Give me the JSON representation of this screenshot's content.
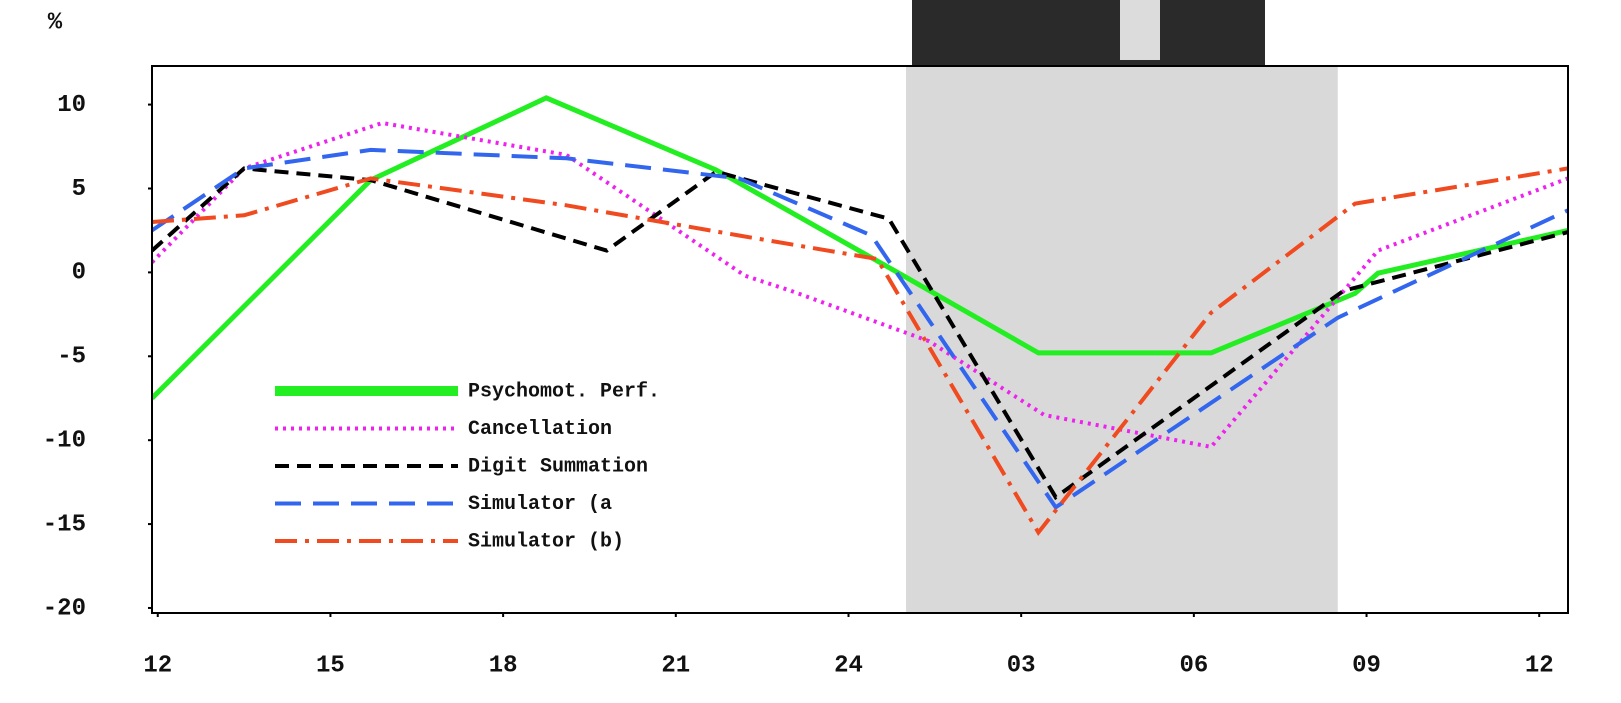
{
  "chart_data": {
    "type": "line",
    "y_unit": "%",
    "xlim": [
      11.9,
      36.5
    ],
    "ylim": [
      -20.3,
      12.3
    ],
    "xticks": [
      12,
      15,
      18,
      21,
      24,
      {
        "value": 27,
        "label": "03"
      },
      {
        "value": 30,
        "label": "06"
      },
      {
        "value": 33,
        "label": "09"
      },
      {
        "value": 36,
        "label": "12"
      }
    ],
    "yticks": [
      10,
      5,
      0,
      -5,
      -10,
      -15,
      -20
    ],
    "shaded_region": [
      25,
      32.5
    ],
    "series": [
      {
        "name": "Psychomot. Perf.",
        "color": "#22ee22",
        "dash": "solid",
        "x": [
          11.9,
          15.7,
          18.75,
          21.7,
          24.8,
          27.3,
          30.3,
          32.8,
          33.2,
          36.5
        ],
        "values": [
          -7.5,
          5.5,
          10.4,
          6.1,
          0.1,
          -4.8,
          -4.8,
          -1.25,
          -0.05,
          2.5
        ]
      },
      {
        "name": "Cancellation",
        "color": "#ee22ee",
        "dash": "dotted",
        "x": [
          11.9,
          13.5,
          15.9,
          19.1,
          22.2,
          23.0,
          25.4,
          27.4,
          30.3,
          33.2,
          36.5
        ],
        "values": [
          0.6,
          6.2,
          8.9,
          7.0,
          -0.2,
          -1.1,
          -4.1,
          -8.5,
          -10.4,
          1.3,
          5.6
        ]
      },
      {
        "name": "Digit Summation",
        "color": "#000000",
        "dash": "dashed",
        "x": [
          11.9,
          13.5,
          15.7,
          19.8,
          21.7,
          24.7,
          27.6,
          32.6,
          36.5
        ],
        "values": [
          1.3,
          6.2,
          5.5,
          1.3,
          6.0,
          3.2,
          -13.4,
          -1.1,
          2.4
        ]
      },
      {
        "name": "Simulator (a",
        "color": "#3366ee",
        "dash": "longdash",
        "x": [
          11.9,
          13.5,
          15.7,
          19.1,
          22.1,
          24.4,
          27.6,
          32.5,
          36.5
        ],
        "values": [
          2.5,
          6.2,
          7.3,
          6.8,
          5.6,
          2.2,
          -14.0,
          -2.7,
          3.7
        ]
      },
      {
        "name": "Simulator (b)",
        "color": "#f04a20",
        "dash": "dashdot",
        "x": [
          11.9,
          13.5,
          15.7,
          19.1,
          22.1,
          24.5,
          27.3,
          30.3,
          32.8,
          36.5
        ],
        "values": [
          3.0,
          3.4,
          5.6,
          4.0,
          2.2,
          0.8,
          -15.5,
          -2.4,
          4.1,
          6.2
        ]
      }
    ]
  }
}
